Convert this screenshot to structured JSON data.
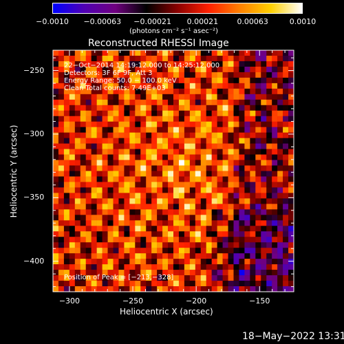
{
  "colorbar": {
    "unit_label": "(photons cm⁻² s⁻¹ asec⁻²)",
    "ticks": [
      "−0.0010",
      "−0.00063",
      "−0.00021",
      "0.00021",
      "0.00063",
      "0.0010"
    ],
    "range": [
      -0.001,
      0.001
    ],
    "colors": [
      "#0000ff",
      "#5000b4",
      "#700080",
      "#000000",
      "#8a0000",
      "#ff2000",
      "#ff8000",
      "#ffd000",
      "#ffffff"
    ]
  },
  "chart_data": {
    "type": "heatmap",
    "title": "Reconstructed RHESSI Image",
    "xlabel": "Heliocentric X (arcsec)",
    "ylabel": "Heliocentric Y (arcsec)",
    "xlim": [
      -313,
      -123
    ],
    "ylim": [
      -424,
      -234
    ],
    "x_ticks": [
      -300,
      -250,
      -200,
      -150
    ],
    "y_ticks": [
      -250,
      -300,
      -350,
      -400
    ],
    "x_tick_labels": [
      "−300",
      "−250",
      "−200",
      "−150"
    ],
    "y_tick_labels": [
      "−250",
      "−300",
      "−350",
      "−400"
    ],
    "peak": [
      -213,
      -328
    ],
    "annotations": {
      "time": "22−Oct−2014 14:19:12.000 to 14:25:12.000",
      "detectors": "Detectors: 3F 6F 9F, Att 3",
      "energy": "Energy Range: 50.0 − 100.0 keV",
      "clean": "Clean     Total counts: 7.49E+03",
      "peak_label": "Position of Peak = [−213,−328]"
    }
  },
  "footer": {
    "timestamp": "18−May−2022 13:31"
  }
}
